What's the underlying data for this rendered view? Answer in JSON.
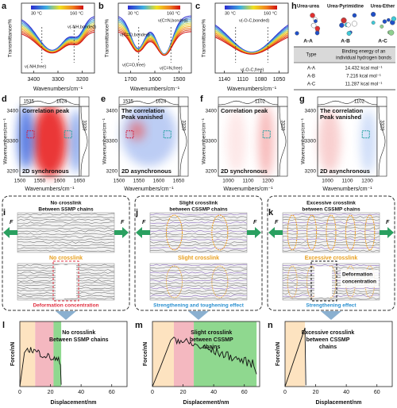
{
  "a": {
    "label": "a",
    "ylabel": "Transmittance/%",
    "xlabel": "Wavenumbers/cm⁻¹",
    "xticks": [
      3400,
      3300,
      3200
    ],
    "colorbar": [
      "30 °C",
      "160 °C"
    ],
    "notes": [
      "ν(-NH,bonded)",
      "ν(-NH,free)"
    ]
  },
  "b": {
    "label": "b",
    "ylabel": "Transmittance/%",
    "xlabel": "Wavenumbers/cm⁻¹",
    "xticks": [
      1700,
      1600,
      1500
    ],
    "colorbar": [
      "30 °C",
      "160 °C"
    ],
    "notes": [
      "ν(C=O,bonded)",
      "ν(C=N,bonded)",
      "ν(C=O,free)",
      "ν(C=N,free)"
    ]
  },
  "c": {
    "label": "c",
    "ylabel": "Transmittance/%",
    "xlabel": "Wavenumbers/cm⁻¹",
    "xticks": [
      1140,
      1110,
      1080,
      1050
    ],
    "colorbar": [
      "30 °C",
      "160 °C"
    ],
    "notes": [
      "ν(-O-C,bonded)",
      "ν(-O-C,free)"
    ]
  },
  "h": {
    "label": "h",
    "molecules": [
      {
        "name": "Urea-urea",
        "type": "A-A"
      },
      {
        "name": "Urea-Pyrimidine",
        "type": "A-B"
      },
      {
        "name": "Urea-Ether",
        "type": "A-C"
      }
    ],
    "table": {
      "header": [
        "Type",
        [
          "Binding energy of an",
          "individual hydrogen bonds"
        ]
      ],
      "rows": [
        [
          "A-A",
          "14.432 kcal mol⁻¹"
        ],
        [
          "A-B",
          "7.216 kcal mol⁻¹"
        ],
        [
          "A-C",
          "11.287 kcal mol⁻¹"
        ]
      ]
    }
  },
  "d": {
    "label": "d",
    "ylabel": "Wavenumbers/cm⁻¹",
    "xlabel": "Wavenumbers/cm⁻¹",
    "yticks": [
      3400,
      3300,
      3200
    ],
    "xticks": [
      1500,
      1550,
      1600,
      1650
    ],
    "top": [
      1535,
      1624
    ],
    "right": [
      3329
    ],
    "note": [
      "Correlation peak"
    ],
    "mode": "2D synchronous"
  },
  "e": {
    "label": "e",
    "ylabel": "Wavenumbers/cm⁻¹",
    "xlabel": "Wavenumbers/cm⁻¹",
    "yticks": [
      3400,
      3300,
      3200
    ],
    "xticks": [
      1500,
      1550,
      1600,
      1650
    ],
    "top": [
      1535,
      1624
    ],
    "right": [
      3329
    ],
    "note": [
      "The correlation",
      "Peak vanished"
    ],
    "mode": "2D asynchronous"
  },
  "f": {
    "label": "f",
    "ylabel": "Wavenumbers/cm⁻¹",
    "xlabel": "Wavenumbers/cm⁻¹",
    "yticks": [
      3400,
      3300,
      3200
    ],
    "xticks": [
      1000,
      1100,
      1200
    ],
    "top": [
      1102
    ],
    "right": [
      3329
    ],
    "note": [
      "Correlation peak"
    ],
    "mode": "2D synchronous"
  },
  "g": {
    "label": "g",
    "ylabel": "Wavenumbers/cm⁻¹",
    "xlabel": "Wavenumbers/cm⁻¹",
    "yticks": [
      3400,
      3300,
      3200
    ],
    "xticks": [
      1000,
      1100,
      1200
    ],
    "top": [
      1102
    ],
    "right": [
      3329
    ],
    "note": [
      "The correlation",
      "Peak vanished"
    ],
    "mode": "2D asynchronous"
  },
  "i": {
    "label": "i",
    "title": [
      "No crosslink",
      "Between SSMP chains"
    ],
    "force": [
      "F",
      "F"
    ],
    "middle": "No crosslink",
    "caption": "Deformation concentration"
  },
  "j": {
    "label": "j",
    "title": [
      "Slight crosslink",
      "between CSSMP chains"
    ],
    "force": [
      "F",
      "F"
    ],
    "middle": "Slight crosslink",
    "caption": "Strengthening and toughening effect"
  },
  "k": {
    "label": "k",
    "title": [
      "Excessive crosslink",
      "between CSSMP chains"
    ],
    "force": [
      "F",
      "F"
    ],
    "middle": "Excessive crosslink",
    "inset": [
      "Deformation",
      "concentration"
    ],
    "caption": "Strengthening effect"
  },
  "l": {
    "label": "l",
    "ylabel": "Force/nN",
    "xlabel": "Displacement/nm",
    "xticks": [
      0,
      20,
      40,
      60
    ],
    "note": [
      "No crosslink",
      "Between SSMP chains"
    ]
  },
  "m": {
    "label": "m",
    "ylabel": "Force/nN",
    "xlabel": "Displacement/nm",
    "xticks": [
      0,
      20,
      40,
      60
    ],
    "note": [
      "Slight crosslink",
      "between CSSMP",
      "chains"
    ]
  },
  "n": {
    "label": "n",
    "ylabel": "Force/nN",
    "xlabel": "Displacement/nm",
    "xticks": [
      0,
      20,
      40,
      60
    ],
    "note": [
      "Excessive crosslink",
      "between CSSMP",
      "chains"
    ]
  }
}
